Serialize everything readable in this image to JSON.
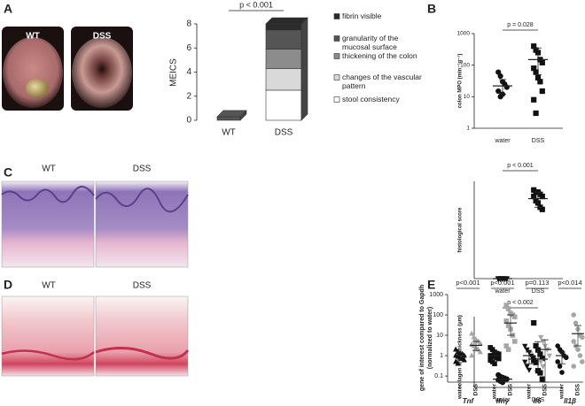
{
  "panel_labels": [
    "A",
    "B",
    "C",
    "D",
    "E"
  ],
  "images": {
    "A": [
      "WT",
      "DSS"
    ],
    "C": [
      "WT",
      "DSS"
    ],
    "D": [
      "WT",
      "DSS"
    ]
  },
  "chart_data": [
    {
      "type": "stacked_bar",
      "ylabel": "MEICS",
      "categories": [
        "WT",
        "DSS"
      ],
      "series": [
        {
          "name": "stool consistency",
          "color": "#ffffff",
          "values": [
            0,
            2.5
          ]
        },
        {
          "name": "changes of the vascular pattern",
          "color": "#d9d9d9",
          "values": [
            0,
            1.8
          ]
        },
        {
          "name": "thickening of the colon",
          "color": "#8c8c8c",
          "values": [
            0,
            1.6
          ]
        },
        {
          "name": "granularity of the mucosal surface",
          "color": "#555555",
          "values": [
            0.3,
            1.6
          ]
        },
        {
          "name": "fibrin visible",
          "color": "#2b2b2b",
          "values": [
            0,
            0.5
          ]
        }
      ],
      "ylim": [
        0,
        8
      ],
      "yticks": [
        0,
        2,
        4,
        6,
        8
      ],
      "annotation": "p < 0.001"
    },
    {
      "type": "strip",
      "ylabel": "colon MPO (min⁻¹g⁻¹)",
      "log": true,
      "ylim": [
        1,
        1000
      ],
      "yticks": [
        1,
        10,
        100,
        1000
      ],
      "categories": [
        "water",
        "DSS"
      ],
      "annotation": "p = 0.028",
      "series": [
        {
          "marker": "circle",
          "color": "#111111",
          "values": [
            60,
            45,
            30,
            25,
            20,
            15,
            10,
            12
          ],
          "mean": 22,
          "lower": 12,
          "upper": 35
        },
        {
          "marker": "square",
          "color": "#111111",
          "values": [
            400,
            300,
            250,
            150,
            120,
            80,
            60,
            40,
            30,
            15,
            8,
            3
          ],
          "mean": 150,
          "lower": 50,
          "upper": 350
        }
      ]
    },
    {
      "type": "strip",
      "ylabel": "histological score",
      "ylim": [
        0,
        4.5
      ],
      "categories": [
        "water",
        "DSS"
      ],
      "annotation": "p < 0.001",
      "series": [
        {
          "marker": "triangle-down",
          "color": "#111111",
          "values": [
            0,
            0,
            0,
            0,
            0,
            0,
            0,
            0,
            0
          ],
          "mean": 0,
          "lower": 0,
          "upper": 0
        },
        {
          "marker": "square",
          "color": "#111111",
          "values": [
            4.1,
            4.0,
            4.0,
            3.9,
            3.8,
            3.8,
            3.6,
            3.5,
            3.3,
            3.2
          ],
          "mean": 3.7,
          "lower": 3.3,
          "upper": 4.0
        }
      ]
    },
    {
      "type": "strip",
      "ylabel": "collagen layer thickness (µm)",
      "ylim": [
        0,
        170
      ],
      "categories": [
        "water",
        "DSS"
      ],
      "annotation": "p < 0.002",
      "series": [
        {
          "marker": "circle",
          "color": "#111111",
          "values": [
            30,
            26,
            24,
            22,
            20,
            18,
            15,
            12
          ],
          "mean": 20,
          "lower": 14,
          "upper": 26
        },
        {
          "marker": "square",
          "color": "#111111",
          "values": [
            155,
            100,
            90,
            80,
            70,
            65,
            60,
            40,
            35,
            20
          ],
          "mean": 68,
          "lower": 40,
          "upper": 110
        }
      ]
    },
    {
      "type": "grouped_strip",
      "ylabel": [
        "gene of interest compared to Gapdh",
        "(normalized to water)"
      ],
      "log": true,
      "ylim": [
        0.05,
        1000
      ],
      "yticks": [
        0.1,
        1,
        10,
        100,
        1000
      ],
      "groups": [
        {
          "name": "Tnf",
          "annotation": "p<0.001",
          "categories": [
            "water",
            "DSS"
          ],
          "series": [
            {
              "marker": "triangle",
              "color": "#111111",
              "values": [
                2,
                1.5,
                1.3,
                1.2,
                1,
                1,
                0.9,
                0.8,
                0.7,
                0.6,
                0.5,
                0.4
              ],
              "mean": 1,
              "lower": 0.6,
              "upper": 1.4
            },
            {
              "marker": "triangle",
              "color": "#a6a6a6",
              "values": [
                12,
                8,
                6,
                5,
                4,
                3.5,
                3,
                2.5,
                2,
                1.5,
                1
              ],
              "mean": 3.2,
              "lower": 1.8,
              "upper": 5
            }
          ]
        },
        {
          "name": "Ifnγ",
          "annotation": "p<0.001",
          "categories": [
            "water",
            "DSS"
          ],
          "series": [
            {
              "marker": "square",
              "color": "#111111",
              "values": [
                2.5,
                2,
                1.5,
                1.3,
                1.2,
                1,
                1,
                0.9,
                0.8,
                0.7,
                0.6,
                0.5,
                0.4
              ],
              "mean": 1,
              "lower": 0.6,
              "upper": 1.5
            },
            {
              "marker": "square",
              "color": "#a6a6a6",
              "values": [
                300,
                200,
                120,
                100,
                80,
                50,
                30,
                20,
                10,
                5,
                3,
                2
              ],
              "mean": 40,
              "lower": 10,
              "upper": 100
            }
          ]
        },
        {
          "name": "Il6",
          "annotation": "p=0.113",
          "categories": [
            "water",
            "DSS"
          ],
          "series": [
            {
              "marker": "triangle-down",
              "color": "#111111",
              "values": [
                3,
                2,
                1.5,
                1,
                0.8,
                0.5,
                0.3,
                0.2
              ],
              "mean": 1,
              "lower": 0.4,
              "upper": 1.5
            },
            {
              "marker": "triangle-down",
              "color": "#a6a6a6",
              "values": [
                8,
                5,
                3,
                2,
                1,
                0.5,
                0.3
              ],
              "mean": 2,
              "lower": 0.05,
              "upper": 6
            }
          ]
        },
        {
          "name": "Il1β",
          "annotation": "p<0.014",
          "categories": [
            "water",
            "DSS"
          ],
          "series": [
            {
              "marker": "circle",
              "color": "#111111",
              "values": [
                3,
                2,
                1.5,
                1,
                0.8,
                0.5,
                0.3,
                0.15
              ],
              "mean": 1,
              "lower": 0.4,
              "upper": 1.5
            },
            {
              "marker": "circle",
              "color": "#a6a6a6",
              "values": [
                100,
                40,
                20,
                10,
                8,
                5,
                3,
                2,
                1,
                0.5,
                0.3
              ],
              "mean": 12,
              "lower": 3,
              "upper": 30
            }
          ]
        }
      ]
    }
  ]
}
